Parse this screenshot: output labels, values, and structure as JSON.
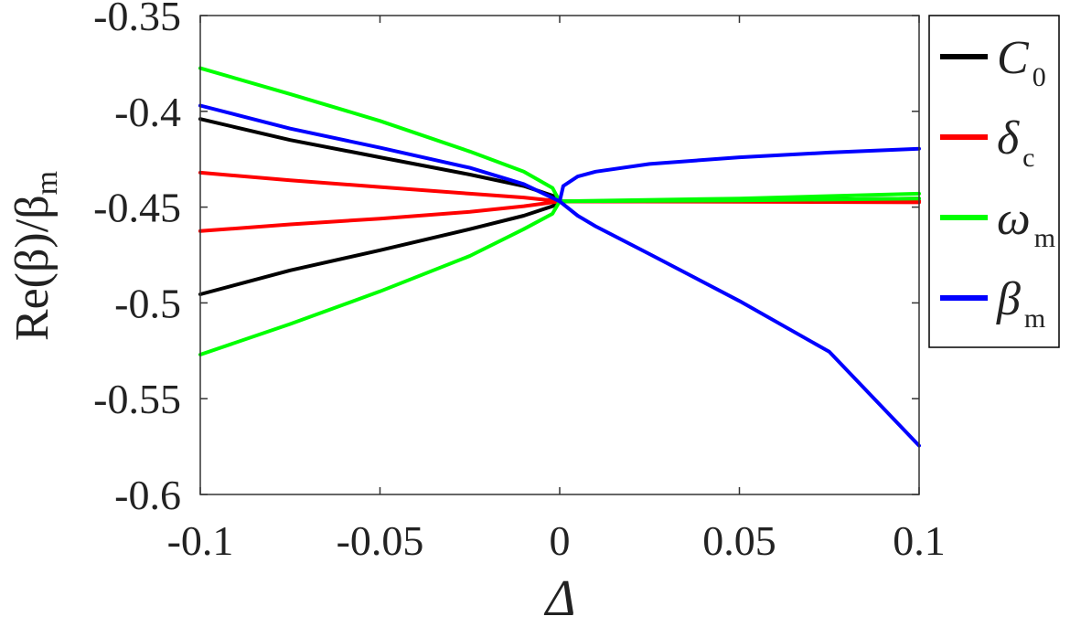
{
  "chart_data": {
    "type": "line",
    "title": "",
    "xlabel": "Δ",
    "ylabel": {
      "main": "Re(β)/β",
      "sub": "m"
    },
    "xlim": [
      -0.1,
      0.1
    ],
    "ylim": [
      -0.6,
      -0.35
    ],
    "xticks": [
      {
        "value": -0.1,
        "label": "-0.1"
      },
      {
        "value": -0.05,
        "label": "-0.05"
      },
      {
        "value": 0,
        "label": "0"
      },
      {
        "value": 0.05,
        "label": "0.05"
      },
      {
        "value": 0.1,
        "label": "0.1"
      }
    ],
    "yticks": [
      {
        "value": -0.35,
        "label": "-0.35"
      },
      {
        "value": -0.4,
        "label": "-0.4"
      },
      {
        "value": -0.45,
        "label": "-0.45"
      },
      {
        "value": -0.5,
        "label": "-0.5"
      },
      {
        "value": -0.55,
        "label": "-0.55"
      },
      {
        "value": -0.6,
        "label": "-0.6"
      }
    ],
    "grid": false,
    "legend_position": "outside-right-top",
    "series": [
      {
        "name": "C",
        "subscript": "0",
        "color": "#000000",
        "italic": true,
        "lines": [
          {
            "x": [
              -0.1,
              -0.075,
              -0.05,
              -0.025,
              -0.01,
              -0.002,
              0
            ],
            "y": [
              -0.404,
              -0.415,
              -0.424,
              -0.433,
              -0.439,
              -0.444,
              -0.447
            ]
          },
          {
            "x": [
              -0.1,
              -0.075,
              -0.05,
              -0.025,
              -0.01,
              -0.002,
              0
            ],
            "y": [
              -0.4955,
              -0.483,
              -0.4725,
              -0.4615,
              -0.4545,
              -0.4495,
              -0.447
            ]
          },
          {
            "x": [
              0,
              0.05,
              0.1
            ],
            "y": [
              -0.447,
              -0.4465,
              -0.4455
            ]
          },
          {
            "x": [
              0,
              0.05,
              0.1
            ],
            "y": [
              -0.447,
              -0.447,
              -0.447
            ]
          }
        ]
      },
      {
        "name": "δ",
        "subscript": "c",
        "color": "#ff0000",
        "italic": true,
        "lines": [
          {
            "x": [
              -0.1,
              -0.075,
              -0.05,
              -0.025,
              -0.01,
              0
            ],
            "y": [
              -0.432,
              -0.436,
              -0.4395,
              -0.443,
              -0.445,
              -0.447
            ]
          },
          {
            "x": [
              -0.1,
              -0.075,
              -0.05,
              -0.025,
              -0.01,
              0
            ],
            "y": [
              -0.4625,
              -0.459,
              -0.456,
              -0.4525,
              -0.4495,
              -0.447
            ]
          },
          {
            "x": [
              0,
              0.05,
              0.1
            ],
            "y": [
              -0.447,
              -0.447,
              -0.447
            ]
          },
          {
            "x": [
              0,
              0.05,
              0.1
            ],
            "y": [
              -0.447,
              -0.4472,
              -0.4475
            ]
          }
        ]
      },
      {
        "name": "ω",
        "subscript": "m",
        "color": "#00ff00",
        "italic": true,
        "lines": [
          {
            "x": [
              -0.1,
              -0.075,
              -0.05,
              -0.025,
              -0.01,
              -0.002,
              0
            ],
            "y": [
              -0.3775,
              -0.391,
              -0.405,
              -0.421,
              -0.4315,
              -0.44,
              -0.447
            ]
          },
          {
            "x": [
              -0.1,
              -0.075,
              -0.05,
              -0.025,
              -0.01,
              -0.002,
              0
            ],
            "y": [
              -0.527,
              -0.511,
              -0.494,
              -0.4755,
              -0.4615,
              -0.4535,
              -0.447
            ]
          },
          {
            "x": [
              0,
              0.05,
              0.1
            ],
            "y": [
              -0.447,
              -0.4455,
              -0.443
            ]
          },
          {
            "x": [
              0,
              0.05,
              0.1
            ],
            "y": [
              -0.447,
              -0.4465,
              -0.4455
            ]
          }
        ]
      },
      {
        "name": "β",
        "subscript": "m",
        "color": "#0000ff",
        "italic": true,
        "lines": [
          {
            "x": [
              -0.1,
              -0.075,
              -0.05,
              -0.025,
              -0.01,
              0
            ],
            "y": [
              -0.397,
              -0.409,
              -0.419,
              -0.4295,
              -0.438,
              -0.447
            ]
          },
          {
            "x": [
              0,
              0.001,
              0.005,
              0.01,
              0.025,
              0.05,
              0.075,
              0.1
            ],
            "y": [
              -0.447,
              -0.439,
              -0.434,
              -0.4315,
              -0.4275,
              -0.424,
              -0.4215,
              -0.4195
            ]
          },
          {
            "x": [
              0,
              0.005,
              0.01,
              0.025,
              0.05,
              0.075,
              0.1
            ],
            "y": [
              -0.447,
              -0.4545,
              -0.46,
              -0.4745,
              -0.499,
              -0.5255,
              -0.5745
            ]
          }
        ]
      }
    ]
  }
}
